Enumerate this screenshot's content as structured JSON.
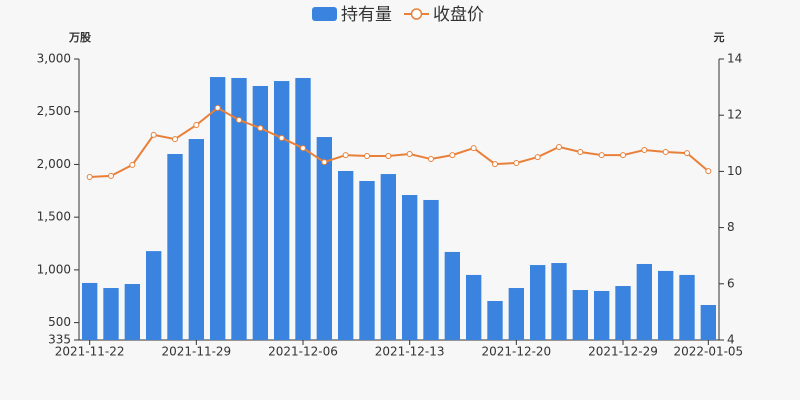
{
  "chart_data": {
    "type": "bar-line",
    "categories": [
      "2021-11-22",
      null,
      null,
      null,
      null,
      "2021-11-29",
      null,
      null,
      null,
      null,
      "2021-12-06",
      null,
      null,
      null,
      null,
      "2021-12-13",
      null,
      null,
      null,
      null,
      "2021-12-20",
      null,
      null,
      null,
      null,
      "2021-12-29",
      null,
      null,
      null,
      "2022-01-05"
    ],
    "series": [
      {
        "name": "持有量",
        "type": "bar",
        "color": "#3a84e0",
        "values": [
          876,
          828,
          866,
          1178,
          2099,
          2241,
          2829,
          2820,
          2744,
          2791,
          2820,
          2260,
          1938,
          1843,
          1909,
          1710,
          1663,
          1170,
          952,
          705,
          828,
          1046,
          1065,
          809,
          800,
          847,
          1056,
          990,
          952,
          667
        ]
      },
      {
        "name": "收盘价",
        "type": "line",
        "axis": "y2",
        "color": "#e8803a",
        "values": [
          9.8,
          9.84,
          10.23,
          11.3,
          11.15,
          11.65,
          12.26,
          11.83,
          11.54,
          11.19,
          10.83,
          10.33,
          10.58,
          10.55,
          10.55,
          10.62,
          10.44,
          10.58,
          10.83,
          10.26,
          10.3,
          10.51,
          10.87,
          10.69,
          10.58,
          10.58,
          10.76,
          10.69,
          10.65,
          10.01
        ]
      }
    ],
    "ylabel": "万股",
    "y2label": "元",
    "ylim": [
      335,
      3000
    ],
    "yticks": [
      335,
      500,
      {
        "value": 1000,
        "label": "1,000"
      },
      {
        "value": 1500,
        "label": "1,500"
      },
      {
        "value": 2000,
        "label": "2,000"
      },
      {
        "value": 2500,
        "label": "2,500"
      },
      {
        "value": 3000,
        "label": "3,000"
      }
    ],
    "y2lim": [
      4,
      14
    ],
    "y2ticks": [
      4,
      6,
      8,
      10,
      12,
      14
    ],
    "grid": false
  }
}
